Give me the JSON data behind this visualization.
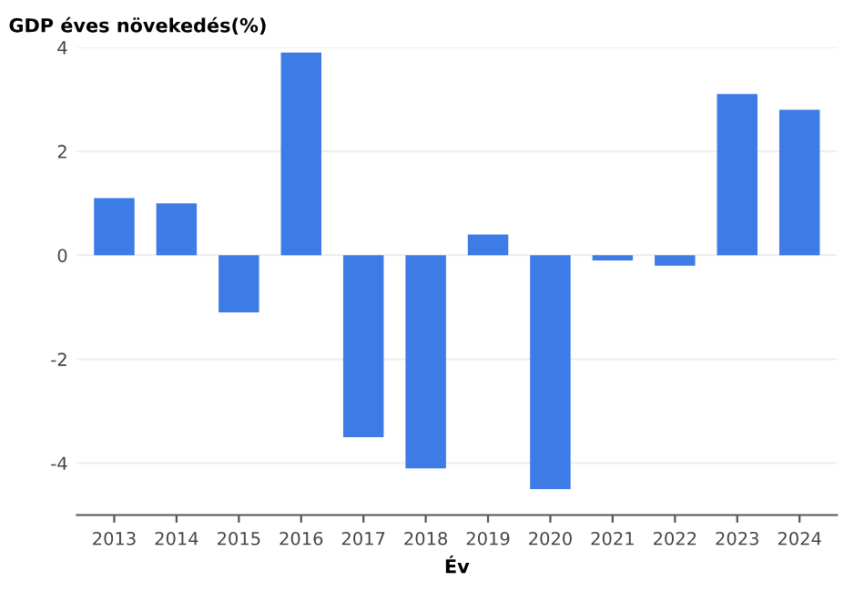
{
  "chart_data": {
    "type": "bar",
    "title": "GDP éves növekedés(%)",
    "xlabel": "Év",
    "categories": [
      "2013",
      "2014",
      "2015",
      "2016",
      "2017",
      "2018",
      "2019",
      "2020",
      "2021",
      "2022",
      "2023",
      "2024"
    ],
    "values": [
      1.1,
      1.0,
      -1.1,
      3.9,
      -3.5,
      -4.1,
      0.4,
      -4.5,
      -0.1,
      -0.2,
      3.1,
      2.8
    ],
    "color": "#3d7be6",
    "ylim": [
      -5,
      4
    ],
    "yticks": [
      {
        "value": -4,
        "label": "-4"
      },
      {
        "value": -2,
        "label": "-2"
      },
      0,
      2,
      4
    ],
    "grid": "y"
  }
}
